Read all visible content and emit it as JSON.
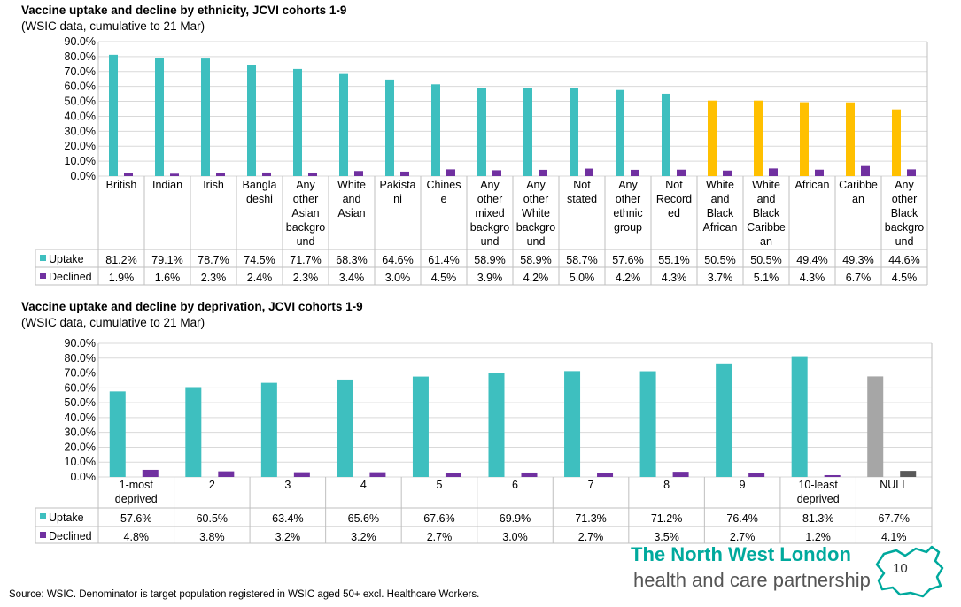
{
  "chart1": {
    "title": "Vaccine uptake and decline by ethnicity, JCVI cohorts 1-9",
    "subtitle": "(WSIC data, cumulative to 21 Mar)"
  },
  "chart2": {
    "title": "Vaccine uptake and decline by deprivation, JCVI cohorts 1-9",
    "subtitle": "(WSIC data, cumulative to 21 Mar)"
  },
  "chart_data": [
    {
      "type": "bar",
      "title": "Vaccine uptake and decline by ethnicity, JCVI cohorts 1-9",
      "subtitle": "(WSIC data, cumulative to 21 Mar)",
      "categories": [
        [
          "British"
        ],
        [
          "Indian"
        ],
        [
          "Irish"
        ],
        [
          "Bangla",
          "deshi"
        ],
        [
          "Any",
          "other",
          "Asian",
          "backgro",
          "und"
        ],
        [
          "White",
          "and",
          "Asian"
        ],
        [
          "Pakista",
          "ni"
        ],
        [
          "Chines",
          "e"
        ],
        [
          "Any",
          "other",
          "mixed",
          "backgro",
          "und"
        ],
        [
          "Any",
          "other",
          "White",
          "backgro",
          "und"
        ],
        [
          "Not",
          "stated"
        ],
        [
          "Any",
          "other",
          "ethnic",
          "group"
        ],
        [
          "Not",
          "Record",
          "ed"
        ],
        [
          "White",
          "and",
          "Black",
          "African"
        ],
        [
          "White",
          "and",
          "Black",
          "Caribbe",
          "an"
        ],
        [
          "African"
        ],
        [
          "Caribbe",
          "an"
        ],
        [
          "Any",
          "other",
          "Black",
          "backgro",
          "und"
        ]
      ],
      "ylim": [
        0,
        90
      ],
      "yticks": [
        "0.0%",
        "10.0%",
        "20.0%",
        "30.0%",
        "40.0%",
        "50.0%",
        "60.0%",
        "70.0%",
        "80.0%",
        "90.0%"
      ],
      "grid": true,
      "series": [
        {
          "name": "Uptake",
          "color": "#3ebfbf",
          "values": [
            81.2,
            79.1,
            78.7,
            74.5,
            71.7,
            68.3,
            64.6,
            61.4,
            58.9,
            58.9,
            58.7,
            57.6,
            55.1,
            50.5,
            50.5,
            49.4,
            49.3,
            44.6
          ],
          "labels": [
            "81.2%",
            "79.1%",
            "78.7%",
            "74.5%",
            "71.7%",
            "68.3%",
            "64.6%",
            "61.4%",
            "58.9%",
            "58.9%",
            "58.7%",
            "57.6%",
            "55.1%",
            "50.5%",
            "50.5%",
            "49.4%",
            "49.3%",
            "44.6%"
          ]
        },
        {
          "name": "Declined",
          "color": "#7030a0",
          "values": [
            1.9,
            1.6,
            2.3,
            2.4,
            2.3,
            3.4,
            3.0,
            4.5,
            3.9,
            4.2,
            5.0,
            4.2,
            4.3,
            3.7,
            5.1,
            4.3,
            6.7,
            4.5
          ],
          "labels": [
            "1.9%",
            "1.6%",
            "2.3%",
            "2.4%",
            "2.3%",
            "3.4%",
            "3.0%",
            "4.5%",
            "3.9%",
            "4.2%",
            "5.0%",
            "4.2%",
            "4.3%",
            "3.7%",
            "5.1%",
            "4.3%",
            "6.7%",
            "4.5%"
          ]
        }
      ],
      "highlight_color": "#ffc000",
      "highlight_indices": [
        13,
        14,
        15,
        16,
        17
      ]
    },
    {
      "type": "bar",
      "title": "Vaccine uptake and decline by deprivation, JCVI cohorts 1-9",
      "subtitle": "(WSIC data, cumulative to 21 Mar)",
      "categories": [
        [
          "1-most",
          "deprived"
        ],
        [
          "2"
        ],
        [
          "3"
        ],
        [
          "4"
        ],
        [
          "5"
        ],
        [
          "6"
        ],
        [
          "7"
        ],
        [
          "8"
        ],
        [
          "9"
        ],
        [
          "10-least",
          "deprived"
        ],
        [
          "NULL"
        ]
      ],
      "ylim": [
        0,
        90
      ],
      "yticks": [
        "0.0%",
        "10.0%",
        "20.0%",
        "30.0%",
        "40.0%",
        "50.0%",
        "60.0%",
        "70.0%",
        "80.0%",
        "90.0%"
      ],
      "grid": true,
      "series": [
        {
          "name": "Uptake",
          "color": "#3ebfbf",
          "values": [
            57.6,
            60.5,
            63.4,
            65.6,
            67.6,
            69.9,
            71.3,
            71.2,
            76.4,
            81.3,
            67.7
          ],
          "labels": [
            "57.6%",
            "60.5%",
            "63.4%",
            "65.6%",
            "67.6%",
            "69.9%",
            "71.3%",
            "71.2%",
            "76.4%",
            "81.3%",
            "67.7%"
          ]
        },
        {
          "name": "Declined",
          "color": "#7030a0",
          "values": [
            4.8,
            3.8,
            3.2,
            3.2,
            2.7,
            3.0,
            2.7,
            3.5,
            2.7,
            1.2,
            4.1
          ],
          "labels": [
            "4.8%",
            "3.8%",
            "3.2%",
            "3.2%",
            "2.7%",
            "3.0%",
            "2.7%",
            "3.5%",
            "2.7%",
            "1.2%",
            "4.1%"
          ]
        }
      ],
      "null_colors": {
        "Uptake": "#a6a6a6",
        "Declined": "#595959"
      },
      "null_index": 10
    }
  ],
  "footer": {
    "source": "Source: WSIC. Denominator is target population registered in WSIC aged 50+ excl. Healthcare Workers."
  },
  "logo": {
    "line1": "The North West London",
    "line2": "health and care partnership",
    "color": "#00a99d",
    "page_number": "10"
  }
}
